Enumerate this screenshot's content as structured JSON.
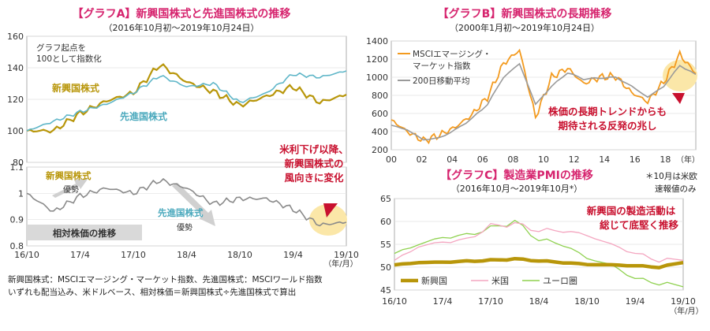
{
  "colors": {
    "title": "#d6246e",
    "emerging": "#b8960a",
    "developed": "#5fb6c8",
    "relative": "#8a8a8a",
    "msci_em": "#f39a1e",
    "ma200": "#9a9a9a",
    "us": "#f4a6c0",
    "euro": "#8fd14f",
    "annotation": "#c8102e",
    "highlight": "#fbe7a8"
  },
  "chart_a": {
    "title": "【グラフA】新興国株式と先進国株式の推移",
    "subtitle": "（2016年10月初～2019年10月24日）",
    "note": [
      "グラフ起点を",
      "100として指数化"
    ],
    "label_emerging": "新興国株式",
    "label_developed": "先進国株式",
    "label_em_outperform": "新興国株式",
    "label_em_outperform2": "優勢",
    "label_dev_outperform": "先進国株式",
    "label_dev_outperform2": "優勢",
    "label_relative": "相対株価の推移",
    "callout": [
      "米利下げ以降、",
      "新興国株式の",
      "風向きに変化"
    ],
    "x_unit": "（年/月）"
  },
  "chart_b": {
    "title": "【グラフB】新興国株式の長期推移",
    "subtitle": "（2000年1月初～2019年10月24日）",
    "legend_msci": [
      "MSCIエマージング・",
      "マーケット指数"
    ],
    "legend_ma": "200日移動平均",
    "callout": [
      "株価の長期トレンドからも",
      "期待される反発の兆し"
    ],
    "x_unit": "（年）"
  },
  "chart_c": {
    "title": "【グラフC】製造業PMIの推移",
    "subtitle": "（2016年10月～2019年10月*）",
    "footnote": [
      "＊10月は米欧",
      "速報値のみ"
    ],
    "callout": [
      "新興国の製造活動は",
      "総じて底堅く推移"
    ],
    "x_unit": "（年/月）"
  },
  "footer": [
    "新興国株式：MSCIエマージング・マーケット指数、先進国株式：MSCIワールド指数",
    "いずれも配当込み、米ドルベース、相対株価＝新興国株式÷先進国株式で算出"
  ],
  "chart_data": [
    {
      "type": "line",
      "title": "【グラフA】新興国株式と先進国株式の推移",
      "x": [
        "16/10",
        "17/1",
        "17/4",
        "17/7",
        "17/10",
        "18/1",
        "18/4",
        "18/7",
        "18/10",
        "19/1",
        "19/4",
        "19/7",
        "19/10"
      ],
      "xticks": [
        "16/10",
        "17/4",
        "17/10",
        "18/4",
        "18/10",
        "19/4",
        "19/10"
      ],
      "ylim": [
        80,
        160
      ],
      "yticks": [
        80,
        100,
        120,
        140,
        160
      ],
      "series": [
        {
          "name": "新興国株式",
          "values": [
            100,
            100,
            111,
            119,
            124,
            142,
            131,
            125,
            116,
            122,
            128,
            118,
            123
          ]
        },
        {
          "name": "先進国株式",
          "values": [
            100,
            106,
            112,
            117,
            124,
            135,
            128,
            130,
            118,
            124,
            136,
            134,
            138
          ]
        }
      ]
    },
    {
      "type": "line",
      "title": "相対株価の推移",
      "x": [
        "16/10",
        "17/1",
        "17/4",
        "17/7",
        "17/10",
        "18/1",
        "18/4",
        "18/7",
        "18/10",
        "19/1",
        "19/4",
        "19/7",
        "19/10"
      ],
      "ylim": [
        0.8,
        1.1
      ],
      "yticks": [
        0.8,
        0.9,
        1.0,
        1.1
      ],
      "series": [
        {
          "values": [
            1.0,
            0.93,
            0.99,
            1.02,
            1.0,
            1.05,
            1.02,
            0.96,
            0.98,
            0.98,
            0.94,
            0.88,
            0.89
          ]
        }
      ]
    },
    {
      "type": "line",
      "title": "【グラフB】新興国株式の長期推移",
      "x": [
        2000,
        2001,
        2002,
        2003,
        2004,
        2005,
        2006,
        2007,
        2008,
        2009,
        2010,
        2011,
        2012,
        2013,
        2014,
        2015,
        2016,
        2017,
        2018,
        2019
      ],
      "xticks": [
        "00",
        "02",
        "04",
        "06",
        "08",
        "10",
        "12",
        "14",
        "16",
        "18"
      ],
      "ylim": [
        200,
        1400
      ],
      "yticks": [
        200,
        400,
        600,
        800,
        1000,
        1200,
        1400
      ],
      "series": [
        {
          "name": "MSCIエマージング・マーケット指数",
          "values": [
            530,
            400,
            300,
            360,
            450,
            580,
            780,
            1150,
            1300,
            560,
            1000,
            1100,
            930,
            1000,
            1010,
            830,
            730,
            950,
            1250,
            1040
          ]
        },
        {
          "name": "200日移動平均",
          "values": [
            470,
            420,
            310,
            330,
            420,
            540,
            700,
            1000,
            1150,
            700,
            900,
            1050,
            980,
            990,
            1000,
            900,
            780,
            900,
            1130,
            1030
          ]
        }
      ]
    },
    {
      "type": "line",
      "title": "【グラフC】製造業PMIの推移",
      "x": [
        "16/10",
        "17/1",
        "17/4",
        "17/7",
        "17/10",
        "18/1",
        "18/4",
        "18/7",
        "18/10",
        "19/1",
        "19/4",
        "19/7",
        "19/10"
      ],
      "xticks": [
        "16/10",
        "17/4",
        "17/10",
        "18/4",
        "18/10",
        "19/4",
        "19/10"
      ],
      "ylim": [
        45,
        65
      ],
      "yticks": [
        45,
        50,
        55,
        60,
        65
      ],
      "series": [
        {
          "name": "新興国",
          "values": [
            50.5,
            51.0,
            51.1,
            51.3,
            51.5,
            51.8,
            51.4,
            51.0,
            50.6,
            50.5,
            50.3,
            50.0,
            51.0
          ]
        },
        {
          "name": "米国",
          "values": [
            51.5,
            54.5,
            55.5,
            56.0,
            59.0,
            59.5,
            58.0,
            58.0,
            57.0,
            55.0,
            53.0,
            51.5,
            51.5
          ]
        },
        {
          "name": "ユーロ圏",
          "values": [
            53.0,
            55.0,
            56.5,
            57.0,
            58.5,
            60.0,
            56.0,
            55.0,
            52.0,
            50.5,
            47.5,
            46.5,
            45.7
          ]
        }
      ]
    }
  ]
}
